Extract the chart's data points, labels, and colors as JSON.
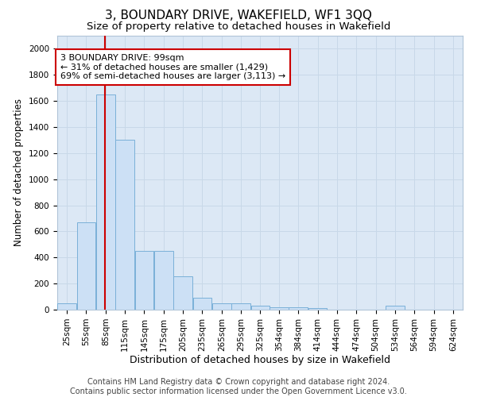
{
  "title": "3, BOUNDARY DRIVE, WAKEFIELD, WF1 3QQ",
  "subtitle": "Size of property relative to detached houses in Wakefield",
  "xlabel": "Distribution of detached houses by size in Wakefield",
  "ylabel": "Number of detached properties",
  "footer_line1": "Contains HM Land Registry data © Crown copyright and database right 2024.",
  "footer_line2": "Contains public sector information licensed under the Open Government Licence v3.0.",
  "property_label": "3 BOUNDARY DRIVE: 99sqm",
  "annotation_line1": "← 31% of detached houses are smaller (1,429)",
  "annotation_line2": "69% of semi-detached houses are larger (3,113) →",
  "property_size_sqm": 99,
  "categories": [
    "25sqm",
    "55sqm",
    "85sqm",
    "115sqm",
    "145sqm",
    "175sqm",
    "205sqm",
    "235sqm",
    "265sqm",
    "295sqm",
    "325sqm",
    "354sqm",
    "384sqm",
    "414sqm",
    "444sqm",
    "474sqm",
    "504sqm",
    "534sqm",
    "564sqm",
    "594sqm",
    "624sqm"
  ],
  "bin_left_edges": [
    25,
    55,
    85,
    115,
    145,
    175,
    205,
    235,
    265,
    295,
    325,
    354,
    384,
    414,
    444,
    474,
    504,
    534,
    564,
    594,
    624
  ],
  "bin_width": 30,
  "values": [
    50,
    670,
    1650,
    1300,
    450,
    450,
    255,
    90,
    50,
    50,
    30,
    20,
    20,
    10,
    0,
    0,
    0,
    30,
    0,
    0,
    0
  ],
  "bar_color": "#cce0f5",
  "bar_edge_color": "#7ab0d8",
  "vline_color": "#cc0000",
  "vline_x": 99,
  "annotation_box_edgecolor": "#cc0000",
  "ylim": [
    0,
    2100
  ],
  "yticks": [
    0,
    200,
    400,
    600,
    800,
    1000,
    1200,
    1400,
    1600,
    1800,
    2000
  ],
  "grid_color": "#c8d8e8",
  "bg_color": "#dce8f5",
  "title_fontsize": 11,
  "subtitle_fontsize": 9.5,
  "xlabel_fontsize": 9,
  "ylabel_fontsize": 8.5,
  "tick_fontsize": 7.5,
  "annot_fontsize": 8,
  "footer_fontsize": 7
}
